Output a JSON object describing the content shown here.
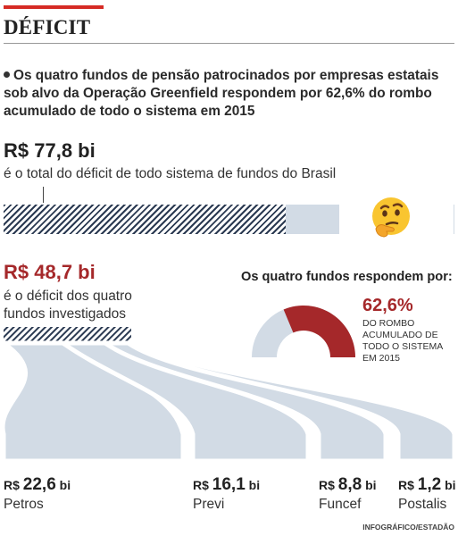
{
  "header": {
    "title": "DÉFICIT",
    "intro": "Os quatro fundos de pensão patrocinados por empresas estatais sob alvo da Operação Greenfield respondem por 62,6% do rombo acumulado de todo o sistema em 2015"
  },
  "total": {
    "value": "R$ 77,8 bi",
    "desc": "é o total do déficit de todo sistema de fundos do Brasil"
  },
  "four_funds": {
    "value": "R$ 48,7 bi",
    "desc": "é o déficit dos quatro fundos investigados"
  },
  "donut": {
    "title": "Os quatro fundos respondem por:",
    "percent_label": "62,6%",
    "note": "DO ROMBO ACUMULADO DE TODO O SISTEMA EM 2015"
  },
  "funds": [
    {
      "prefix": "R$",
      "amount": "22,6",
      "unit": "bi",
      "name": "Petros"
    },
    {
      "prefix": "R$",
      "amount": "16,1",
      "unit": "bi",
      "name": "Previ"
    },
    {
      "prefix": "R$",
      "amount": "8,8",
      "unit": "bi",
      "name": "Funcef"
    },
    {
      "prefix": "R$",
      "amount": "1,2",
      "unit": "bi",
      "name": "Postalis"
    }
  ],
  "credit": "INFOGRÁFICO/ESTADÃO",
  "colors": {
    "accent_red": "#a5282a",
    "navy": "#2b3a52",
    "light_blue": "#d2dbe5",
    "rule_red": "#d62b24"
  },
  "icons": {
    "emoji": "thinking-face-icon"
  },
  "chart_data": [
    {
      "type": "bar",
      "categories": [
        "Total do sistema",
        "Quatro fundos investigados"
      ],
      "values": [
        77.8,
        48.7
      ],
      "unit": "R$ bi"
    },
    {
      "type": "pie",
      "categories": [
        "Quatro fundos",
        "Demais"
      ],
      "values": [
        62.6,
        37.4
      ],
      "unit": "%"
    },
    {
      "type": "bar",
      "categories": [
        "Petros",
        "Previ",
        "Funcef",
        "Postalis"
      ],
      "values": [
        22.6,
        16.1,
        8.8,
        1.2
      ],
      "unit": "R$ bi"
    }
  ]
}
